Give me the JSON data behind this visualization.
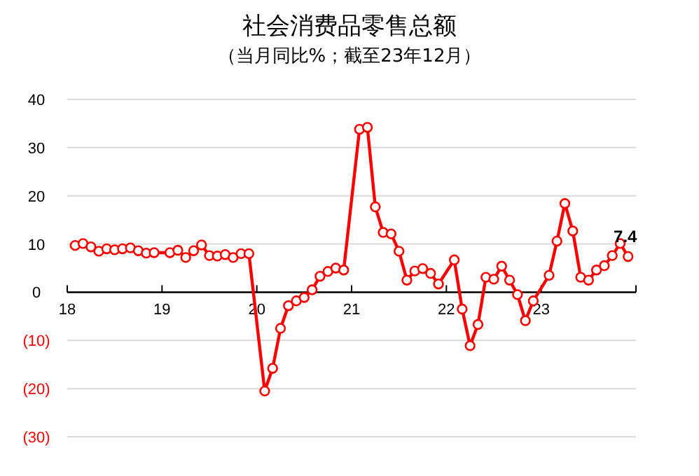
{
  "chart_data": {
    "type": "line",
    "title": "社会消费品零售总额",
    "subtitle": "（当月同比%；截至23年12月）",
    "x": [
      "2018-02",
      "2018-03",
      "2018-04",
      "2018-05",
      "2018-06",
      "2018-07",
      "2018-08",
      "2018-09",
      "2018-10",
      "2018-11",
      "2018-12",
      "2019-02",
      "2019-03",
      "2019-04",
      "2019-05",
      "2019-06",
      "2019-07",
      "2019-08",
      "2019-09",
      "2019-10",
      "2019-11",
      "2019-12",
      "2020-02",
      "2020-03",
      "2020-04",
      "2020-05",
      "2020-06",
      "2020-07",
      "2020-08",
      "2020-09",
      "2020-10",
      "2020-11",
      "2020-12",
      "2021-02",
      "2021-03",
      "2021-04",
      "2021-05",
      "2021-06",
      "2021-07",
      "2021-08",
      "2021-09",
      "2021-10",
      "2021-11",
      "2021-12",
      "2022-02",
      "2022-03",
      "2022-04",
      "2022-05",
      "2022-06",
      "2022-07",
      "2022-08",
      "2022-09",
      "2022-10",
      "2022-11",
      "2022-12",
      "2023-02",
      "2023-03",
      "2023-04",
      "2023-05",
      "2023-06",
      "2023-07",
      "2023-08",
      "2023-09",
      "2023-10",
      "2023-11",
      "2023-12"
    ],
    "series": [
      {
        "color": "#ff0000",
        "values": [
          9.7,
          10.1,
          9.4,
          8.5,
          9.0,
          8.8,
          9.0,
          9.2,
          8.6,
          8.1,
          8.2,
          8.2,
          8.7,
          7.2,
          8.6,
          9.8,
          7.6,
          7.5,
          7.8,
          7.2,
          8.0,
          8.0,
          -20.5,
          -15.8,
          -7.5,
          -2.8,
          -1.8,
          -1.1,
          0.5,
          3.3,
          4.3,
          5.0,
          4.6,
          33.8,
          34.2,
          17.7,
          12.4,
          12.1,
          8.5,
          2.5,
          4.4,
          4.9,
          3.9,
          1.7,
          6.7,
          -3.5,
          -11.1,
          -6.7,
          3.1,
          2.7,
          5.4,
          2.5,
          -0.5,
          -5.9,
          -1.8,
          3.5,
          10.6,
          18.4,
          12.7,
          3.1,
          2.5,
          4.6,
          5.5,
          7.6,
          10.1,
          7.4
        ],
        "value_labels": [
          null,
          null,
          null,
          null,
          null,
          null,
          null,
          null,
          null,
          null,
          null,
          null,
          null,
          null,
          null,
          null,
          null,
          null,
          null,
          null,
          null,
          null,
          null,
          null,
          null,
          null,
          null,
          null,
          null,
          null,
          null,
          null,
          null,
          null,
          null,
          null,
          null,
          null,
          null,
          null,
          null,
          null,
          null,
          null,
          null,
          null,
          null,
          null,
          null,
          null,
          null,
          null,
          null,
          null,
          null,
          null,
          null,
          null,
          null,
          null,
          null,
          null,
          null,
          null,
          null,
          "7.4"
        ]
      }
    ],
    "xlim": [
      "2018-01",
      "2024-01"
    ],
    "xticks": [
      {
        "value": "2018-01",
        "label": "18"
      },
      {
        "value": "2019-01",
        "label": "19"
      },
      {
        "value": "2020-01",
        "label": "20"
      },
      {
        "value": "2021-01",
        "label": "21"
      },
      {
        "value": "2022-01",
        "label": "22"
      },
      {
        "value": "2023-01",
        "label": "23"
      },
      {
        "value": "2024-01",
        "label": null
      }
    ],
    "ylim": [
      -30,
      40
    ],
    "yticks": [
      {
        "value": -30,
        "label": "(30)"
      },
      {
        "value": -20,
        "label": "(20)"
      },
      {
        "value": -10,
        "label": "(10)"
      },
      0,
      10,
      20,
      30,
      40
    ],
    "grid": "y",
    "marker": "circle",
    "line_style": "solid"
  }
}
